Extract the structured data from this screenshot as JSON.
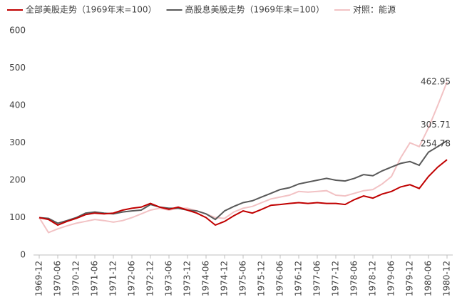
{
  "chart_data": {
    "type": "line",
    "categories": [
      "1969-12",
      null,
      "1970-06",
      null,
      "1970-12",
      null,
      "1971-06",
      null,
      "1971-12",
      null,
      "1972-06",
      null,
      "1972-12",
      null,
      "1973-06",
      null,
      "1973-12",
      null,
      "1974-06",
      null,
      "1974-12",
      null,
      "1975-06",
      null,
      "1975-12",
      null,
      "1976-06",
      null,
      "1976-12",
      null,
      "1977-06",
      null,
      "1977-12",
      null,
      "1978-06",
      null,
      "1978-12",
      null,
      "1979-06",
      null,
      "1979-12",
      null,
      "1980-06",
      null,
      "1980-12"
    ],
    "series": [
      {
        "name": "全部美股走势（1969年末=100）",
        "color": "#c00000",
        "values": [
          100,
          95,
          80,
          90,
          98,
          108,
          112,
          110,
          112,
          120,
          125,
          128,
          138,
          128,
          122,
          128,
          120,
          112,
          100,
          80,
          90,
          105,
          118,
          112,
          122,
          133,
          135,
          138,
          140,
          138,
          140,
          138,
          138,
          135,
          148,
          158,
          152,
          163,
          170,
          182,
          188,
          178,
          210,
          235,
          254.78
        ]
      },
      {
        "name": "高股息美股走势（1969年末=100）",
        "color": "#595959",
        "values": [
          100,
          98,
          85,
          92,
          100,
          112,
          115,
          112,
          110,
          115,
          118,
          120,
          135,
          128,
          125,
          125,
          120,
          118,
          110,
          95,
          118,
          130,
          140,
          145,
          155,
          165,
          175,
          180,
          190,
          195,
          200,
          205,
          200,
          198,
          205,
          215,
          212,
          225,
          235,
          245,
          250,
          240,
          275,
          290,
          305.71
        ]
      },
      {
        "name": "对照：能源",
        "color": "#f2c2c4",
        "values": [
          100,
          60,
          70,
          78,
          85,
          90,
          95,
          92,
          88,
          92,
          100,
          110,
          120,
          125,
          120,
          125,
          125,
          118,
          110,
          100,
          98,
          115,
          125,
          130,
          140,
          150,
          155,
          160,
          170,
          168,
          170,
          172,
          160,
          158,
          165,
          172,
          175,
          190,
          210,
          260,
          300,
          290,
          340,
          400,
          462.95
        ]
      }
    ],
    "ylim": [
      0,
      600
    ],
    "yticks": [
      0,
      100,
      200,
      300,
      400,
      500,
      600
    ],
    "grid": false
  }
}
